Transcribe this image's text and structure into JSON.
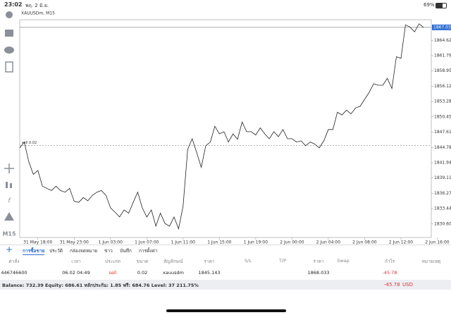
{
  "status_bar": {
    "time": "23:02",
    "date": "พฤ. 2 มิ.ย.",
    "battery": "69%"
  },
  "sidebar": {
    "timeframe": "M15"
  },
  "chart_data": {
    "type": "line",
    "title": "XAUUSDm, M15",
    "color": "#222222",
    "categories": [
      null,
      null,
      null,
      null,
      "31 May 18:00",
      null,
      null,
      null,
      null,
      null,
      null,
      null,
      "31 May 23:00",
      null,
      null,
      null,
      null,
      null,
      null,
      null,
      "1 Jun 03:00",
      null,
      null,
      null,
      null,
      null,
      null,
      null,
      "1 Jun 07:00",
      null,
      null,
      null,
      null,
      null,
      null,
      null,
      "1 Jun 11:00",
      null,
      null,
      null,
      null,
      null,
      null,
      null,
      "1 Jun 15:00",
      null,
      null,
      null,
      null,
      null,
      null,
      null,
      "1 Jun 19:00",
      null,
      null,
      null,
      null,
      null,
      null,
      null,
      "2 Jun 00:00",
      null,
      null,
      null,
      null,
      null,
      null,
      null,
      "2 Jun 04:00",
      null,
      null,
      null,
      null,
      null,
      null,
      null,
      "2 Jun 08:00",
      null,
      null,
      null,
      null,
      null,
      null,
      null,
      "2 Jun 12:00",
      null,
      null,
      null,
      null,
      null,
      null,
      null,
      "2 Jun 16:00"
    ],
    "values": [
      1844.7,
      1845.8,
      1842.1,
      1839.8,
      1840.5,
      1837.6,
      1837.2,
      1836.8,
      1837.6,
      1836.8,
      1836.5,
      1837.2,
      1834.8,
      1834.6,
      1835.5,
      1834.9,
      1835.9,
      1836.5,
      1836.8,
      1835.9,
      1833.6,
      1832.8,
      1831.9,
      1833.2,
      1832.6,
      1834.6,
      1836.5,
      1833.6,
      1831.9,
      1833.2,
      1830.2,
      1832.6,
      1830.7,
      1830.2,
      1831.9,
      1829.7,
      1833.9,
      1844.4,
      1846.4,
      1843.8,
      1841.1,
      1845.1,
      1845.8,
      1848.7,
      1847.3,
      1847.7,
      1845.8,
      1847.3,
      1846.3,
      1849.5,
      1847.7,
      1847.7,
      1847.1,
      1848.4,
      1847.3,
      1846.4,
      1847.7,
      1846.8,
      1848.1,
      1846.4,
      1846.4,
      1845.8,
      1846.0,
      1845.1,
      1845.8,
      1845.4,
      1844.7,
      1846.0,
      1848.1,
      1848.1,
      1851.3,
      1850.8,
      1851.7,
      1851.0,
      1852.1,
      1852.4,
      1853.7,
      1855.0,
      1856.6,
      1856.3,
      1856.3,
      1857.6,
      1855.7,
      1861.6,
      1861.3,
      1867.5,
      1867.1,
      1866.2,
      1867.7,
      1867.0,
      null,
      null,
      null
    ],
    "ylim": [
      1828.1,
      1868.45
    ],
    "yticks": [
      1830.605,
      {
        "value": 1833.44,
        "label": "1833.440"
      },
      1836.275,
      {
        "value": 1839.11,
        "label": "1839.110"
      },
      1841.945,
      {
        "value": 1844.78,
        "label": "1844.780"
      },
      1847.615,
      {
        "value": 1850.45,
        "label": "1850.450"
      },
      1853.285,
      {
        "value": 1856.12,
        "label": "1856.120"
      },
      1858.955,
      {
        "value": 1861.79,
        "label": "1861.790"
      },
      1864.625
    ],
    "current_price": 1867.033,
    "order": {
      "label": "sell 0.02",
      "price": 1845.143
    }
  },
  "tabs": [
    "การซื้อขาย",
    "ประวัติ",
    "กล่องจดหมาย",
    "ข่าว",
    "บันทึก",
    "การตั้งค่า"
  ],
  "table": {
    "header": [
      "ค่าสั่ง",
      "เวลา",
      "ประเภท",
      "ขนาด",
      "สัญลักษณ์",
      "ราคา",
      "S/L",
      "T/P",
      "ราคา",
      "Swap",
      "กำไร",
      "หมายเหตุ"
    ],
    "rows": [
      [
        "446746600",
        "06.02 04:49",
        "sell",
        "0.02",
        "xauusdm",
        "1845.143",
        null,
        null,
        "1868.033",
        null,
        "-45.78",
        null
      ]
    ]
  },
  "summary": {
    "text": "Balance: 732.39 Equity: 686.61 หลักประกัน: 1.85 ฟรี: 684.76 Level: 37 211.75%",
    "profit": "-45.78",
    "currency": "USD"
  }
}
